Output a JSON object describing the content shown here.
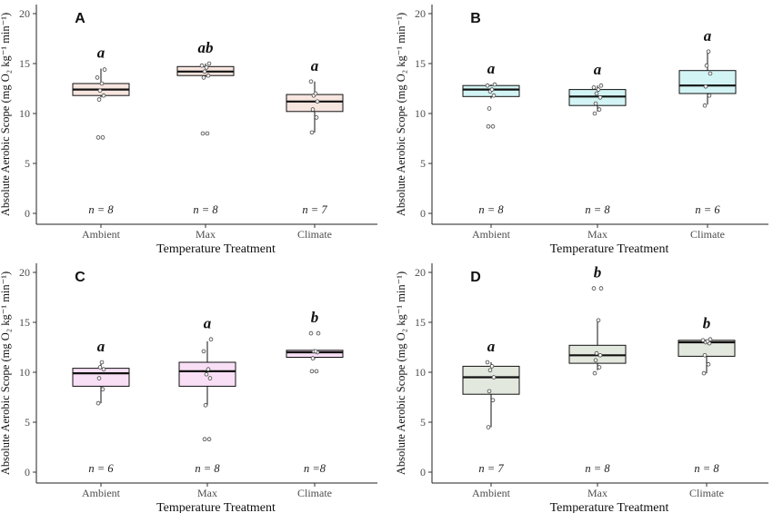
{
  "figure": {
    "x_axis_title": "Temperature Treatment",
    "y_axis_title": "Absolute Aerobic Scope (mg O₂ kg⁻¹ min⁻¹)"
  },
  "chart_data": [
    {
      "type": "box",
      "panel": "A",
      "xlabel": "Temperature Treatment",
      "ylabel": "Absolute Aerobic Scope (mg O₂ kg⁻¹ min⁻¹)",
      "ylim": [
        0,
        20
      ],
      "yticks": [
        0,
        5,
        10,
        15,
        20
      ],
      "categories": [
        "Ambient",
        "Max",
        "Climate"
      ],
      "fill": "#f7e5df",
      "groups": [
        {
          "category": "Ambient",
          "letter": "a",
          "n_label": "n = 8",
          "q1": 11.8,
          "median": 12.4,
          "q3": 13.0,
          "whisker_low": 11.6,
          "whisker_high": 14.5,
          "points": [
            7.6,
            7.6,
            11.4,
            11.8,
            12.3,
            13.0,
            13.6,
            14.4
          ]
        },
        {
          "category": "Max",
          "letter": "ab",
          "n_label": "n = 8",
          "q1": 13.8,
          "median": 14.2,
          "q3": 14.7,
          "whisker_low": 13.6,
          "whisker_high": 15.0,
          "points": [
            8.0,
            8.0,
            13.6,
            13.8,
            14.2,
            14.6,
            14.8,
            15.0
          ]
        },
        {
          "category": "Climate",
          "letter": "a",
          "n_label": "n = 7",
          "q1": 10.2,
          "median": 11.2,
          "q3": 11.9,
          "whisker_low": 8.1,
          "whisker_high": 13.2,
          "points": [
            8.1,
            9.6,
            10.4,
            11.2,
            11.8,
            12.0,
            13.2
          ]
        }
      ]
    },
    {
      "type": "box",
      "panel": "B",
      "xlabel": "Temperature Treatment",
      "ylabel": "Absolute Aerobic Scope (mg O₂ kg⁻¹ min⁻¹)",
      "ylim": [
        0,
        20
      ],
      "yticks": [
        0,
        5,
        10,
        15,
        20
      ],
      "categories": [
        "Ambient",
        "Max",
        "Climate"
      ],
      "fill": "#d3f4f4",
      "groups": [
        {
          "category": "Ambient",
          "letter": "a",
          "n_label": "n = 8",
          "q1": 11.7,
          "median": 12.4,
          "q3": 12.8,
          "whisker_low": 11.5,
          "whisker_high": 12.9,
          "points": [
            8.7,
            8.7,
            10.5,
            11.8,
            12.2,
            12.4,
            12.8,
            12.9
          ]
        },
        {
          "category": "Max",
          "letter": "a",
          "n_label": "n = 8",
          "q1": 10.8,
          "median": 11.7,
          "q3": 12.4,
          "whisker_low": 10.2,
          "whisker_high": 12.8,
          "points": [
            10.0,
            10.4,
            11.0,
            11.6,
            12.0,
            12.4,
            12.6,
            12.8
          ]
        },
        {
          "category": "Climate",
          "letter": "a",
          "n_label": "n = 6",
          "q1": 12.0,
          "median": 12.8,
          "q3": 14.3,
          "whisker_low": 10.9,
          "whisker_high": 16.2,
          "points": [
            10.8,
            11.8,
            12.7,
            14.0,
            14.8,
            16.2
          ]
        }
      ]
    },
    {
      "type": "box",
      "panel": "C",
      "xlabel": "Temperature Treatment",
      "ylabel": "Absolute Aerobic Scope (mg O₂ kg⁻¹ min⁻¹)",
      "ylim": [
        0,
        20
      ],
      "yticks": [
        0,
        5,
        10,
        15,
        20
      ],
      "categories": [
        "Ambient",
        "Max",
        "Climate"
      ],
      "fill": "#f8dff6",
      "groups": [
        {
          "category": "Ambient",
          "letter": "a",
          "n_label": "n = 6",
          "q1": 8.6,
          "median": 9.9,
          "q3": 10.4,
          "whisker_low": 6.9,
          "whisker_high": 11.0,
          "points": [
            6.9,
            8.3,
            9.4,
            10.3,
            10.5,
            11.0
          ]
        },
        {
          "category": "Max",
          "letter": "a",
          "n_label": "n = 8",
          "q1": 8.6,
          "median": 10.1,
          "q3": 11.0,
          "whisker_low": 6.7,
          "whisker_high": 13.1,
          "points": [
            3.3,
            3.3,
            6.7,
            9.4,
            9.8,
            10.3,
            12.1,
            13.3
          ]
        },
        {
          "category": "Climate",
          "letter": "b",
          "n_label": "n =8",
          "q1": 11.5,
          "median": 12.0,
          "q3": 12.2,
          "whisker_low": 11.3,
          "whisker_high": 12.2,
          "points": [
            10.1,
            10.1,
            11.4,
            12.0,
            12.1,
            12.1,
            13.9,
            13.9
          ]
        }
      ]
    },
    {
      "type": "box",
      "panel": "D",
      "xlabel": "Temperature Treatment",
      "ylabel": "Absolute Aerobic Scope (mg O₂ kg⁻¹ min⁻¹)",
      "ylim": [
        0,
        20
      ],
      "yticks": [
        0,
        5,
        10,
        15,
        20
      ],
      "categories": [
        "Ambient",
        "Max",
        "Climate"
      ],
      "fill": "#e2e8de",
      "groups": [
        {
          "category": "Ambient",
          "letter": "a",
          "n_label": "n = 7",
          "q1": 7.8,
          "median": 9.5,
          "q3": 10.6,
          "whisker_low": 4.5,
          "whisker_high": 11.0,
          "points": [
            4.5,
            7.2,
            8.1,
            9.5,
            10.2,
            10.6,
            11.0
          ]
        },
        {
          "category": "Max",
          "letter": "b",
          "n_label": "n = 8",
          "q1": 10.9,
          "median": 11.7,
          "q3": 12.7,
          "whisker_low": 10.2,
          "whisker_high": 15.2,
          "points": [
            9.9,
            10.5,
            11.2,
            11.7,
            11.9,
            15.2,
            18.4,
            18.4
          ]
        },
        {
          "category": "Climate",
          "letter": "b",
          "n_label": "n = 8",
          "q1": 11.6,
          "median": 13.0,
          "q3": 13.2,
          "whisker_low": 9.9,
          "whisker_high": 13.3,
          "points": [
            9.9,
            10.8,
            11.7,
            12.9,
            13.0,
            13.1,
            13.2,
            13.3
          ]
        }
      ]
    }
  ]
}
